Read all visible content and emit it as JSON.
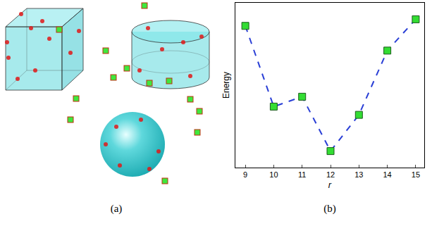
{
  "captions": [
    "(a)",
    "(b)"
  ],
  "chart_data": {
    "type": "line",
    "x_label": "r",
    "y_label": "Energy",
    "x": [
      9,
      10,
      11,
      12,
      13,
      14,
      15
    ],
    "series": [
      {
        "name": "Energy",
        "color": "#2a3fd6",
        "values": [
          0.86,
          0.37,
          0.43,
          0.1,
          0.32,
          0.71,
          0.9
        ],
        "marker": "square",
        "line_style": "dash"
      }
    ],
    "xlim": [
      8.65,
      15.3
    ],
    "xticks": [
      9,
      10,
      11,
      12,
      13,
      14,
      15
    ],
    "ylim": [
      0,
      1
    ],
    "tick_labels": "x",
    "grid": false
  }
}
